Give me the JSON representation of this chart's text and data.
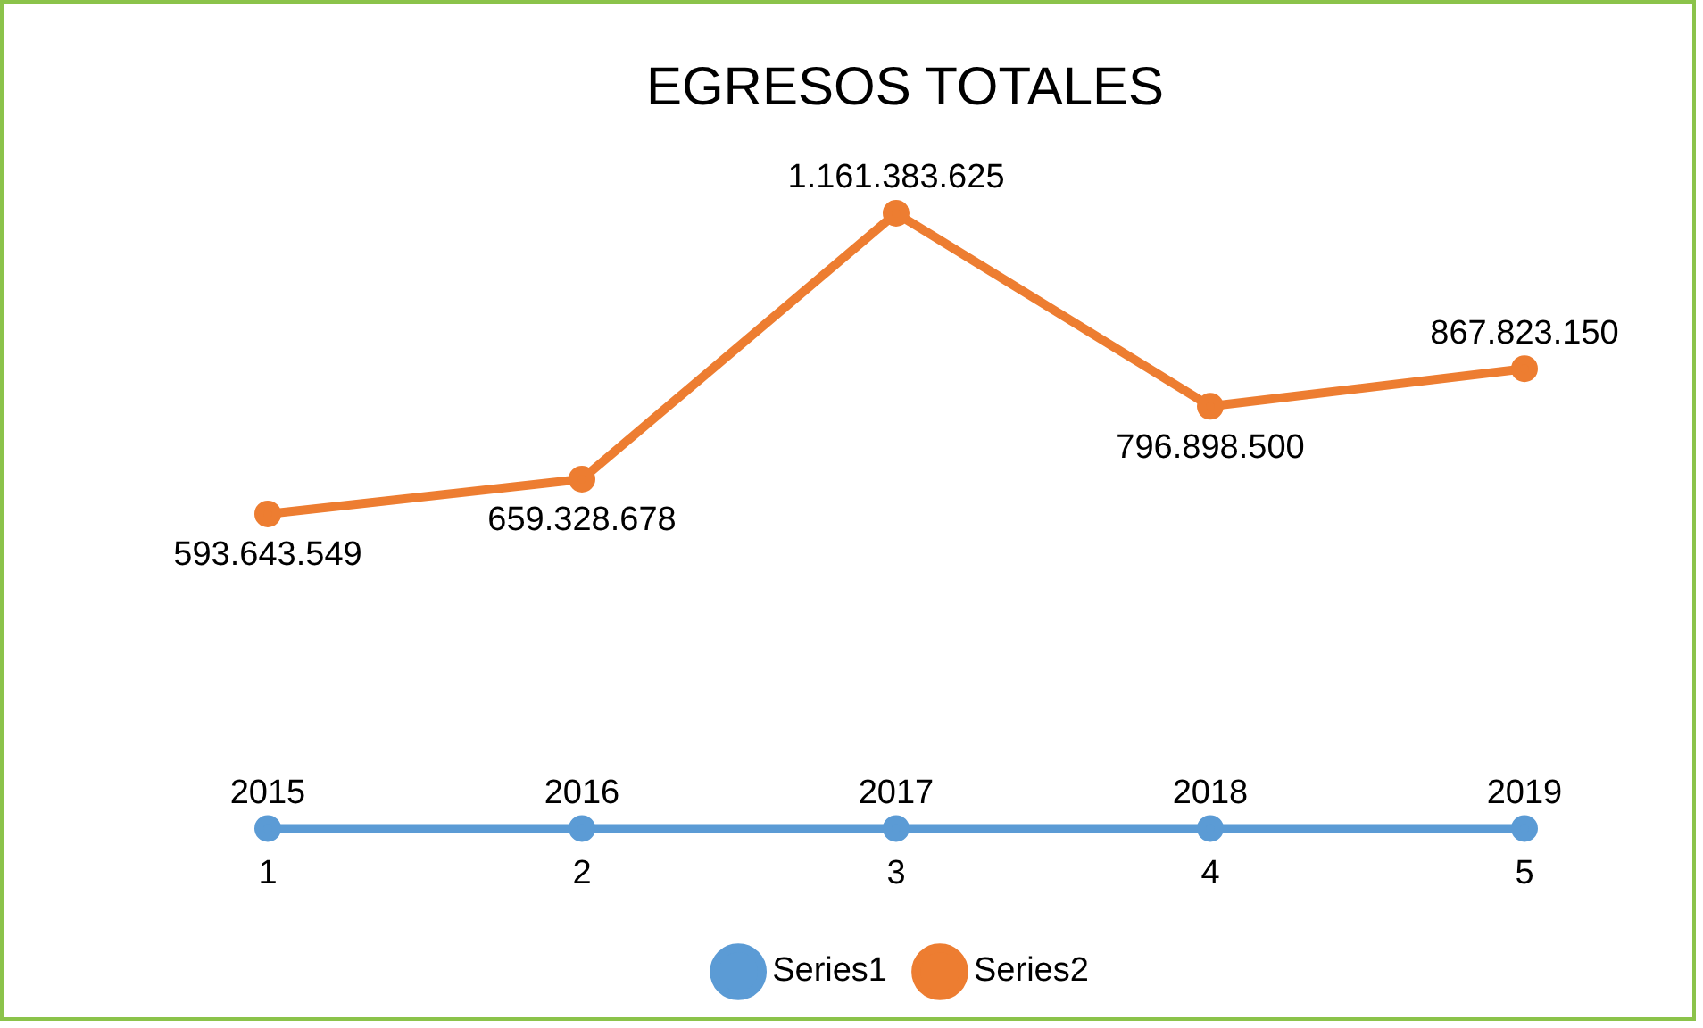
{
  "chart_data": {
    "type": "line",
    "title": "EGRESOS TOTALES",
    "categories": [
      "1",
      "2",
      "3",
      "4",
      "5"
    ],
    "marker": "circle",
    "legend": "bottom",
    "grid": false,
    "series": [
      {
        "name": "Series1",
        "color": "#5b9bd5",
        "values": [
          2015,
          2016,
          2017,
          2018,
          2019
        ],
        "value_labels": [
          "2015",
          "2016",
          "2017",
          "2018",
          "2019"
        ]
      },
      {
        "name": "Series2",
        "color": "#ed7d31",
        "values": [
          593643549,
          659328678,
          1161383625,
          796898500,
          867823150
        ],
        "value_labels": [
          "593.643.549",
          "659.328.678",
          "1.161.383.625",
          "796.898.500",
          "867.823.150"
        ]
      }
    ]
  }
}
